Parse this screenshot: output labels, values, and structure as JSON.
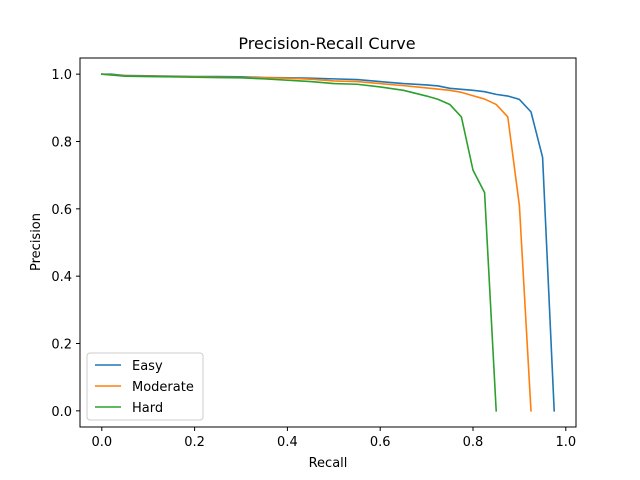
{
  "chart_data": {
    "type": "line",
    "title": "Precision-Recall Curve",
    "xlabel": "Recall",
    "ylabel": "Precision",
    "xlim": [
      -0.047,
      1.022
    ],
    "ylim": [
      -0.048,
      1.048
    ],
    "xticks": [
      0.0,
      0.2,
      0.4,
      0.6,
      0.8,
      1.0
    ],
    "xtick_labels": [
      "0.0",
      "0.2",
      "0.4",
      "0.6",
      "0.8",
      "1.0"
    ],
    "yticks": [
      0.0,
      0.2,
      0.4,
      0.6,
      0.8,
      1.0
    ],
    "ytick_labels": [
      "0.0",
      "0.2",
      "0.4",
      "0.6",
      "0.8",
      "1.0"
    ],
    "grid": false,
    "legend_position": "lower-left",
    "series": [
      {
        "name": "Easy",
        "color": "#1f77b4",
        "x": [
          0.0,
          0.02,
          0.05,
          0.1,
          0.15,
          0.2,
          0.25,
          0.3,
          0.35,
          0.4,
          0.45,
          0.5,
          0.55,
          0.6,
          0.65,
          0.7,
          0.725,
          0.75,
          0.8,
          0.825,
          0.85,
          0.875,
          0.9,
          0.925,
          0.95,
          0.975
        ],
        "y": [
          1.0,
          1.0,
          0.996,
          0.995,
          0.994,
          0.993,
          0.993,
          0.992,
          0.99,
          0.989,
          0.988,
          0.986,
          0.984,
          0.978,
          0.972,
          0.968,
          0.965,
          0.958,
          0.952,
          0.948,
          0.94,
          0.935,
          0.925,
          0.888,
          0.753,
          0.0
        ]
      },
      {
        "name": "Moderate",
        "color": "#ff7f0e",
        "x": [
          0.0,
          0.05,
          0.1,
          0.15,
          0.2,
          0.25,
          0.3,
          0.35,
          0.4,
          0.45,
          0.5,
          0.55,
          0.6,
          0.65,
          0.7,
          0.75,
          0.775,
          0.8,
          0.825,
          0.85,
          0.875,
          0.9,
          0.925
        ],
        "y": [
          1.0,
          0.995,
          0.994,
          0.993,
          0.992,
          0.991,
          0.99,
          0.989,
          0.988,
          0.985,
          0.98,
          0.978,
          0.972,
          0.966,
          0.959,
          0.952,
          0.946,
          0.936,
          0.926,
          0.91,
          0.873,
          0.61,
          0.0
        ]
      },
      {
        "name": "Hard",
        "color": "#2ca02c",
        "x": [
          0.0,
          0.05,
          0.1,
          0.15,
          0.2,
          0.25,
          0.3,
          0.35,
          0.4,
          0.45,
          0.5,
          0.55,
          0.6,
          0.65,
          0.7,
          0.725,
          0.75,
          0.775,
          0.8,
          0.825,
          0.85
        ],
        "y": [
          1.0,
          0.994,
          0.993,
          0.992,
          0.991,
          0.99,
          0.989,
          0.986,
          0.982,
          0.978,
          0.972,
          0.97,
          0.962,
          0.952,
          0.935,
          0.925,
          0.91,
          0.873,
          0.715,
          0.648,
          0.0
        ]
      }
    ]
  }
}
